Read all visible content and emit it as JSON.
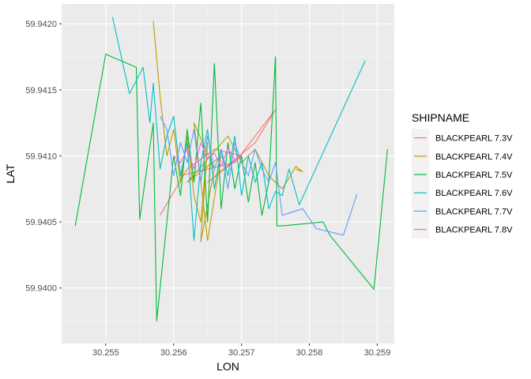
{
  "chart_data": {
    "type": "line",
    "xlabel": "LON",
    "ylabel": "LAT",
    "xlim": [
      30.25435,
      30.25925
    ],
    "ylim": [
      59.93958,
      59.94215
    ],
    "x_ticks": [
      {
        "value": 30.255,
        "label": "30.255"
      },
      {
        "value": 30.256,
        "label": "30.256"
      },
      {
        "value": 30.257,
        "label": "30.257"
      },
      {
        "value": 30.258,
        "label": "30.258"
      },
      {
        "value": 30.259,
        "label": "30.259"
      }
    ],
    "y_ticks": [
      {
        "value": 59.94,
        "label": "59.9400"
      },
      {
        "value": 59.9405,
        "label": "59.9405"
      },
      {
        "value": 59.941,
        "label": "59.9410"
      },
      {
        "value": 59.9415,
        "label": "59.9415"
      },
      {
        "value": 59.942,
        "label": "59.9420"
      }
    ],
    "grid": true,
    "legend": {
      "title": "SHIPNAME",
      "position": "right"
    },
    "series": [
      {
        "name": "BLACKPEARL 7.3V",
        "color": "#F8766D",
        "x": [
          30.2558,
          30.2562,
          30.2566,
          30.257,
          30.2565,
          30.2572,
          30.2575,
          30.2569,
          30.2561
        ],
        "y": [
          59.94055,
          59.9409,
          59.94105,
          59.941,
          59.9408,
          59.9411,
          59.94135,
          59.94095,
          59.94085
        ]
      },
      {
        "name": "BLACKPEARL 7.4V",
        "color": "#B79F00",
        "x": [
          30.2557,
          30.2558,
          30.2559,
          30.256,
          30.2561,
          30.2562,
          30.2563,
          30.2564,
          30.2565,
          30.2564,
          30.2566,
          30.2563,
          30.2565,
          30.2567,
          30.2562,
          30.2568,
          30.257,
          30.2572,
          30.2574,
          30.2576,
          30.2578,
          30.2579,
          30.2578
        ],
        "y": [
          59.94202,
          59.94145,
          59.941,
          59.9412,
          59.9408,
          59.94115,
          59.9407,
          59.9405,
          59.9411,
          59.94035,
          59.9409,
          59.94125,
          59.94036,
          59.941,
          59.9408,
          59.94115,
          59.94095,
          59.94105,
          59.94085,
          59.94075,
          59.94092,
          59.94088,
          59.9409
        ]
      },
      {
        "name": "BLACKPEARL 7.5V",
        "color": "#00BA38",
        "x": [
          30.25455,
          30.255,
          30.25545,
          30.2555,
          30.2557,
          30.25575,
          30.256,
          30.2561,
          30.2562,
          30.2563,
          30.2564,
          30.2565,
          30.2566,
          30.2567,
          30.2568,
          30.2569,
          30.257,
          30.2571,
          30.2572,
          30.2573,
          30.2574,
          30.2575,
          30.25752,
          30.2576,
          30.2582,
          30.2583,
          30.25895,
          30.25915
        ],
        "y": [
          59.94047,
          59.94177,
          59.94167,
          59.94052,
          59.94125,
          59.93975,
          59.941,
          59.9407,
          59.9412,
          59.9408,
          59.9414,
          59.9405,
          59.9417,
          59.9406,
          59.9411,
          59.94075,
          59.941,
          59.94065,
          59.94095,
          59.94055,
          59.9408,
          59.94175,
          59.94047,
          59.94047,
          59.9405,
          59.9404,
          59.93999,
          59.94105
        ]
      },
      {
        "name": "BLACKPEARL 7.6V",
        "color": "#00BFC4",
        "x": [
          30.2551,
          30.25535,
          30.25555,
          30.25565,
          30.2557,
          30.2558,
          30.2559,
          30.256,
          30.2561,
          30.2562,
          30.2563,
          30.2564,
          30.2565,
          30.2566,
          30.2567,
          30.2568,
          30.2569,
          30.257,
          30.2571,
          30.2572,
          30.2573,
          30.2574,
          30.2575,
          30.2576,
          30.2577,
          30.25785,
          30.25882
        ],
        "y": [
          59.94205,
          59.94147,
          59.94167,
          59.94125,
          59.94155,
          59.9409,
          59.94115,
          59.9413,
          59.94085,
          59.9411,
          59.94036,
          59.94095,
          59.9412,
          59.94075,
          59.94105,
          59.94085,
          59.94115,
          59.9407,
          59.941,
          59.9408,
          59.94095,
          59.9406,
          59.94073,
          59.9407,
          59.9409,
          59.94063,
          59.94172
        ]
      },
      {
        "name": "BLACKPEARL 7.7V",
        "color": "#619CFF",
        "x": [
          30.2558,
          30.2559,
          30.256,
          30.2561,
          30.2562,
          30.2563,
          30.2564,
          30.2565,
          30.2566,
          30.2567,
          30.2568,
          30.2569,
          30.257,
          30.2571,
          30.2572,
          30.2573,
          30.2574,
          30.2575,
          30.2576,
          30.2579,
          30.2581,
          30.2585,
          30.2587
        ],
        "y": [
          59.9413,
          59.9412,
          59.94085,
          59.9411,
          59.94095,
          59.9412,
          59.9408,
          59.94115,
          59.9409,
          59.94105,
          59.94075,
          59.9411,
          59.94095,
          59.94085,
          59.94105,
          59.9409,
          59.9408,
          59.94095,
          59.94055,
          59.9406,
          59.94045,
          59.9404,
          59.94071
        ]
      },
      {
        "name": "BLACKPEARL 7.8V",
        "color": "#F564E3",
        "x": [
          30.256,
          30.2561,
          30.2562,
          30.2563,
          30.2564,
          30.2565,
          30.2566,
          30.2567,
          30.2568,
          30.2569,
          30.257
        ],
        "y": [
          59.941,
          59.94095,
          59.94105,
          59.9409,
          59.9411,
          59.94098,
          59.94102,
          59.94092,
          59.94106,
          59.94097,
          59.94101
        ]
      }
    ]
  }
}
